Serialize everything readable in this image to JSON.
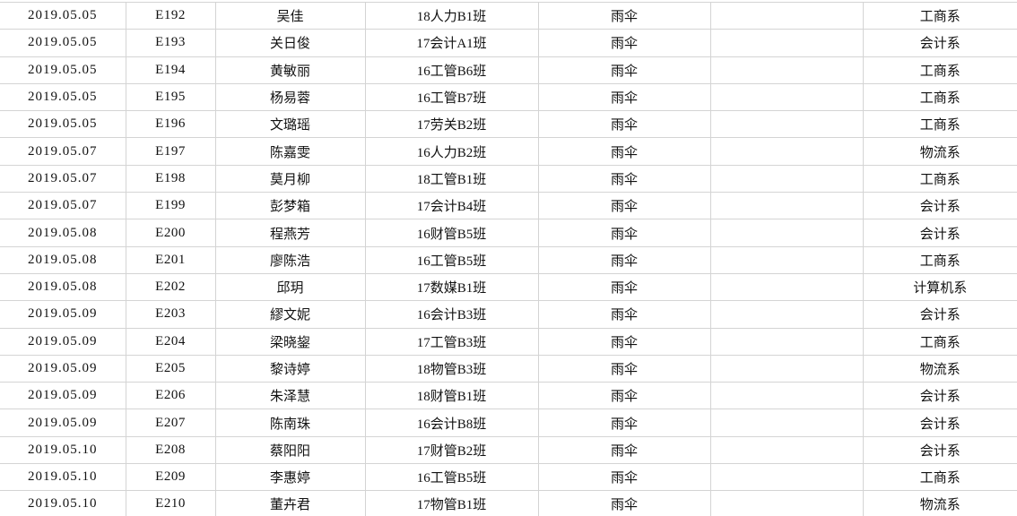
{
  "table": {
    "colors": {
      "gridline": "#d4d4d4",
      "text": "#111111",
      "background": "#ffffff"
    },
    "column_keys": [
      "date",
      "id",
      "name",
      "class",
      "item",
      "empty",
      "department"
    ],
    "rows": [
      [
        "2019.05.05",
        "E192",
        "吴佳",
        "18人力B1班",
        "雨伞",
        "",
        "工商系"
      ],
      [
        "2019.05.05",
        "E193",
        "关日俊",
        "17会计A1班",
        "雨伞",
        "",
        "会计系"
      ],
      [
        "2019.05.05",
        "E194",
        "黄敏丽",
        "16工管B6班",
        "雨伞",
        "",
        "工商系"
      ],
      [
        "2019.05.05",
        "E195",
        "杨易蓉",
        "16工管B7班",
        "雨伞",
        "",
        "工商系"
      ],
      [
        "2019.05.05",
        "E196",
        "文璐瑶",
        "17劳关B2班",
        "雨伞",
        "",
        "工商系"
      ],
      [
        "2019.05.07",
        "E197",
        "陈嘉雯",
        "16人力B2班",
        "雨伞",
        "",
        "物流系"
      ],
      [
        "2019.05.07",
        "E198",
        "莫月柳",
        "18工管B1班",
        "雨伞",
        "",
        "工商系"
      ],
      [
        "2019.05.07",
        "E199",
        "彭梦箱",
        "17会计B4班",
        "雨伞",
        "",
        "会计系"
      ],
      [
        "2019.05.08",
        "E200",
        "程燕芳",
        "16财管B5班",
        "雨伞",
        "",
        "会计系"
      ],
      [
        "2019.05.08",
        "E201",
        "廖陈浩",
        "16工管B5班",
        "雨伞",
        "",
        "工商系"
      ],
      [
        "2019.05.08",
        "E202",
        "邱玥",
        "17数媒B1班",
        "雨伞",
        "",
        "计算机系"
      ],
      [
        "2019.05.09",
        "E203",
        "繆文妮",
        "16会计B3班",
        "雨伞",
        "",
        "会计系"
      ],
      [
        "2019.05.09",
        "E204",
        "梁晓鋆",
        "17工管B3班",
        "雨伞",
        "",
        "工商系"
      ],
      [
        "2019.05.09",
        "E205",
        "黎诗婷",
        "18物管B3班",
        "雨伞",
        "",
        "物流系"
      ],
      [
        "2019.05.09",
        "E206",
        "朱泽慧",
        "18财管B1班",
        "雨伞",
        "",
        "会计系"
      ],
      [
        "2019.05.09",
        "E207",
        "陈南珠",
        "16会计B8班",
        "雨伞",
        "",
        "会计系"
      ],
      [
        "2019.05.10",
        "E208",
        "蔡阳阳",
        "17财管B2班",
        "雨伞",
        "",
        "会计系"
      ],
      [
        "2019.05.10",
        "E209",
        "李惠婷",
        "16工管B5班",
        "雨伞",
        "",
        "工商系"
      ],
      [
        "2019.05.10",
        "E210",
        "董卉君",
        "17物管B1班",
        "雨伞",
        "",
        "物流系"
      ]
    ]
  }
}
